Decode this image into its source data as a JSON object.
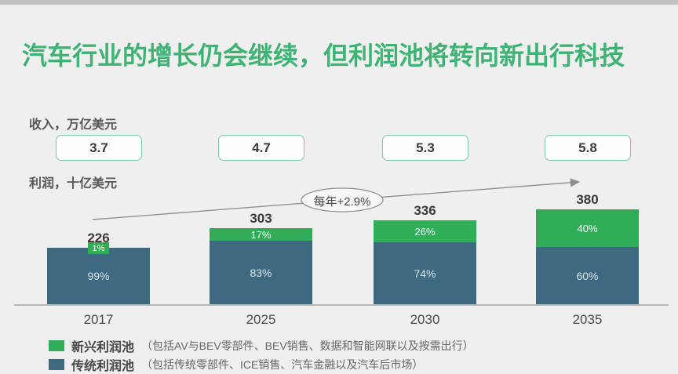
{
  "slide": {
    "title": "汽车行业的增长仍会继续，但利润池将转向新出行科技",
    "revenue_section_label": "收入，万亿美元",
    "profit_section_label": "利润，十亿美元"
  },
  "chart_data": {
    "type": "bar",
    "stacked": true,
    "title": "利润，十亿美元",
    "categories": [
      "2017",
      "2025",
      "2030",
      "2035"
    ],
    "totals": [
      226,
      303,
      336,
      380
    ],
    "totals_unit": "十亿美元",
    "revenue_boxes": [
      "3.7",
      "4.7",
      "5.3",
      "5.8"
    ],
    "revenue_unit": "万亿美元",
    "series": [
      {
        "name": "新兴利润池",
        "values": [
          1,
          17,
          26,
          40
        ],
        "labels": [
          "1%",
          "17%",
          "26%",
          "40%"
        ],
        "color": "#2fae57"
      },
      {
        "name": "传统利润池",
        "values": [
          99,
          83,
          74,
          60
        ],
        "labels": [
          "99%",
          "83%",
          "74%",
          "60%"
        ],
        "color": "#3d6a81"
      }
    ],
    "annotation": "每年+2.9%",
    "grid": false,
    "legend_position": "bottom-left"
  },
  "legend": {
    "items": [
      {
        "label": "新兴利润池",
        "description": "（包括AV与BEV零部件、BEV销售、数据和智能网联以及按需出行）",
        "color": "#2fae57"
      },
      {
        "label": "传统利润池",
        "description": "（包括传统零部件、ICE销售、汽车金融以及汽车后市场）",
        "color": "#3d6a81"
      }
    ]
  },
  "colors": {
    "title_green": "#3eb374",
    "new_pool_green": "#2fae57",
    "traditional_pool_teal": "#3d6a81",
    "background": "#efefef",
    "box_border": "#84c7a8",
    "arrow_gray": "#8f8f8f"
  }
}
